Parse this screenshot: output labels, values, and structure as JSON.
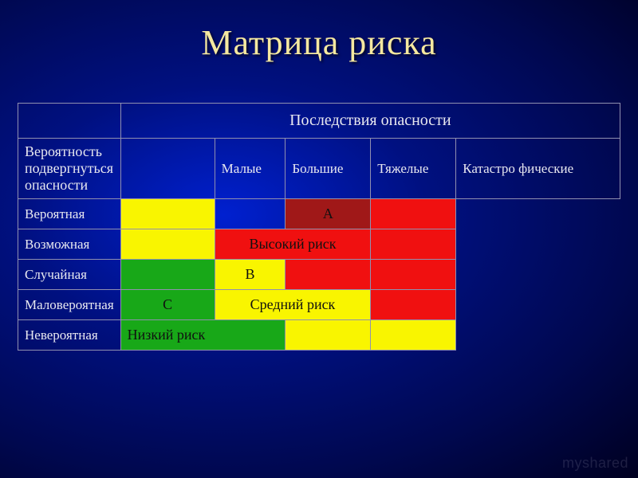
{
  "title": "Матрица риска",
  "axes": {
    "columns_header": "Последствия опасности",
    "rows_header": "Вероятность подвергнуться опасности"
  },
  "severity_cols": [
    "Малые",
    "Большие",
    "Тяжелые",
    "Катастро фические"
  ],
  "prob_rows": [
    "Вероятная",
    "Возможная",
    "Случайная",
    "Маловероятная",
    "Невероятная"
  ],
  "colors": {
    "yellow": "#f9f500",
    "red": "#f01010",
    "maroon": "#a01818",
    "green": "#18a818",
    "text_dark": "#101010",
    "text_light": "#e8e8f0",
    "border": "#9090b0"
  },
  "matrix": [
    [
      {
        "bg": "yellow",
        "txt": ""
      },
      {
        "bg": "",
        "txt": ""
      },
      {
        "bg": "maroon",
        "txt": "А",
        "align": "center"
      },
      {
        "bg": "red",
        "txt": ""
      }
    ],
    [
      {
        "bg": "yellow",
        "txt": ""
      },
      {
        "bg": "red",
        "txt": "Высокий риск",
        "span": 2,
        "align": "center"
      },
      null,
      {
        "bg": "red",
        "txt": ""
      }
    ],
    [
      {
        "bg": "green",
        "txt": ""
      },
      {
        "bg": "yellow",
        "txt": "В",
        "align": "center"
      },
      {
        "bg": "red",
        "txt": ""
      },
      {
        "bg": "red",
        "txt": ""
      }
    ],
    [
      {
        "bg": "green",
        "txt": "С",
        "align": "center"
      },
      {
        "bg": "yellow",
        "txt": "Средний риск",
        "span": 2,
        "align": "center"
      },
      null,
      {
        "bg": "red",
        "txt": ""
      }
    ],
    [
      {
        "bg": "green",
        "txt": "Низкий риск",
        "span": 2
      },
      null,
      {
        "bg": "yellow",
        "txt": ""
      },
      {
        "bg": "yellow",
        "txt": ""
      }
    ]
  ],
  "watermark": "myshared"
}
